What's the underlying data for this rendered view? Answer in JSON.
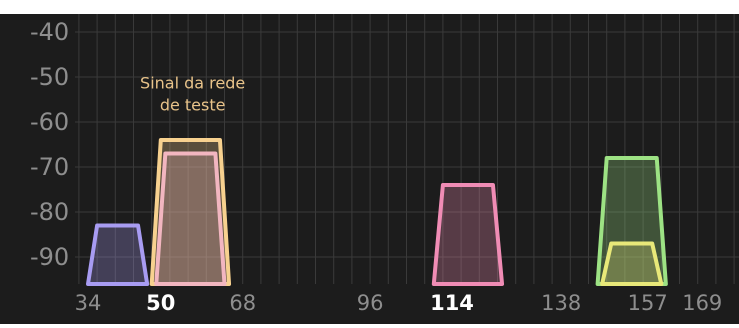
{
  "header_caption": "",
  "chart_data": {
    "type": "area",
    "title": "",
    "xlabel": "",
    "ylabel": "",
    "ylim": [
      -96,
      -36
    ],
    "xlim": [
      30,
      178
    ],
    "grid": true,
    "colors": {
      "background": "#1c1c1c",
      "grid": "#3a3a3a",
      "tick_label": "#8e8e8e",
      "tick_label_emphasis": "#ffffff",
      "annotation": "#e8c38a"
    },
    "y_ticks": [
      "-40",
      "-50",
      "-60",
      "-70",
      "-80",
      "-90"
    ],
    "y_tick_values": [
      -40,
      -50,
      -60,
      -70,
      -80,
      -90
    ],
    "x_ticks": [
      {
        "label": "34",
        "value": 34,
        "emphasis": false
      },
      {
        "label": "50",
        "value": 50,
        "emphasis": true
      },
      {
        "label": "68",
        "value": 68,
        "emphasis": false
      },
      {
        "label": "96",
        "value": 96,
        "emphasis": false
      },
      {
        "label": "114",
        "value": 114,
        "emphasis": true
      },
      {
        "label": "138",
        "value": 138,
        "emphasis": false
      },
      {
        "label": "157",
        "value": 157,
        "emphasis": false
      },
      {
        "label": "169",
        "value": 169,
        "emphasis": false
      }
    ],
    "series": [
      {
        "color": "#a89cf2",
        "x": [
          34,
          36,
          45,
          47
        ],
        "y": [
          -96,
          -83,
          -83,
          -96
        ]
      },
      {
        "color": "#f7d18f",
        "x": [
          48,
          50,
          63,
          65
        ],
        "y": [
          -96,
          -64,
          -64,
          -96
        ]
      },
      {
        "color": "#f2b6c0",
        "x": [
          49,
          51,
          62,
          64
        ],
        "y": [
          -96,
          -67,
          -67,
          -96
        ]
      },
      {
        "color": "#f08cb5",
        "x": [
          110,
          112,
          123,
          125
        ],
        "y": [
          -96,
          -74,
          -74,
          -96
        ]
      },
      {
        "color": "#9de284",
        "x": [
          146,
          148,
          159,
          161
        ],
        "y": [
          -96,
          -68,
          -68,
          -96
        ]
      },
      {
        "color": "#e8e879",
        "x": [
          147,
          149,
          158,
          160
        ],
        "y": [
          -96,
          -87,
          -87,
          -96
        ]
      }
    ],
    "annotation": {
      "lines": [
        "Sinal da rede",
        "de teste"
      ],
      "x": 57,
      "y": -57
    }
  }
}
